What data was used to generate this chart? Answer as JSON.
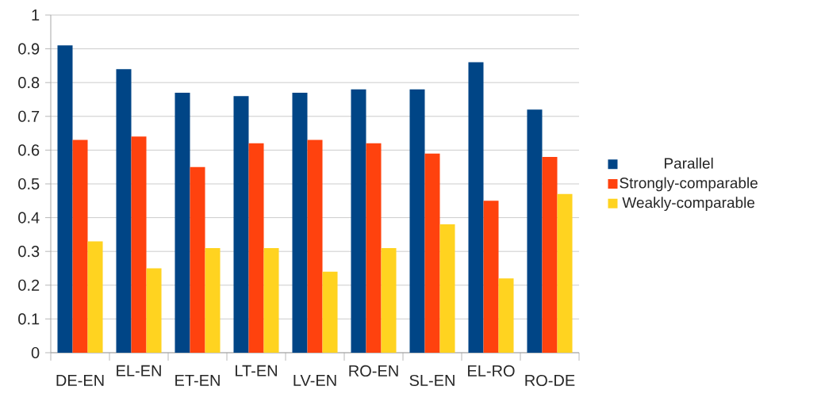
{
  "chart_data": {
    "type": "bar",
    "categories": [
      "DE-EN",
      "EL-EN",
      "ET-EN",
      "LT-EN",
      "LV-EN",
      "RO-EN",
      "SL-EN",
      "EL-RO",
      "RO-DE"
    ],
    "series": [
      {
        "name": "Parallel",
        "color": "#004586",
        "values": [
          0.91,
          0.84,
          0.77,
          0.76,
          0.77,
          0.78,
          0.78,
          0.86,
          0.72
        ]
      },
      {
        "name": "Strongly-comparable",
        "color": "#ff420e",
        "values": [
          0.63,
          0.64,
          0.55,
          0.62,
          0.63,
          0.62,
          0.59,
          0.45,
          0.58
        ]
      },
      {
        "name": "Weakly-comparable",
        "color": "#ffd320",
        "values": [
          0.33,
          0.25,
          0.31,
          0.31,
          0.24,
          0.31,
          0.38,
          0.22,
          0.47
        ]
      }
    ],
    "ylim": [
      0,
      1
    ],
    "yticks": [
      0,
      0.1,
      0.2,
      0.3,
      0.4,
      0.5,
      0.6,
      0.7,
      0.8,
      0.9,
      1
    ],
    "grid": "y",
    "legend": "right"
  }
}
